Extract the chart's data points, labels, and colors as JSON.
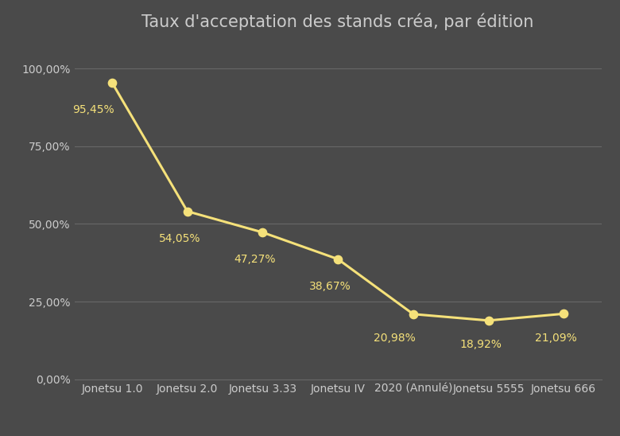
{
  "title": "Taux d'acceptation des stands créa, par édition",
  "categories": [
    "Jonetsu 1.0",
    "Jonetsu 2.0",
    "Jonetsu 3.33",
    "Jonetsu IV",
    "2020 (Annulé)",
    "Jonetsu 5555",
    "Jonetsu 666"
  ],
  "values": [
    95.45,
    54.05,
    47.27,
    38.67,
    20.98,
    18.92,
    21.09
  ],
  "labels": [
    "95,45%",
    "54,05%",
    "47,27%",
    "38,67%",
    "20,98%",
    "18,92%",
    "21,09%"
  ],
  "line_color": "#f5e17a",
  "marker_color": "#f5e17a",
  "background_color": "#4a4a4a",
  "text_color": "#cccccc",
  "grid_color": "#686868",
  "title_fontsize": 15,
  "label_fontsize": 10,
  "tick_fontsize": 10,
  "ylim": [
    0,
    108
  ],
  "yticks": [
    0,
    25,
    50,
    75,
    100
  ],
  "ytick_labels": [
    "0,00%",
    "25,00%",
    "50,00%",
    "75,00%",
    "100,00%"
  ]
}
